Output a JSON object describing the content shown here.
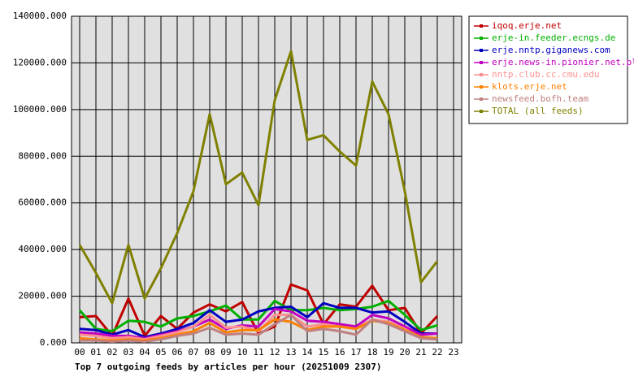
{
  "chart_data": {
    "type": "line",
    "title": "Top 7 outgoing feeds by articles per hour (20251009 2307)",
    "categories": [
      "00",
      "01",
      "02",
      "03",
      "04",
      "05",
      "06",
      "07",
      "08",
      "09",
      "10",
      "11",
      "12",
      "13",
      "14",
      "15",
      "16",
      "17",
      "18",
      "19",
      "20",
      "21",
      "22",
      "23"
    ],
    "series": [
      {
        "name": "iqoq.erje.net",
        "color": "#c00000",
        "values": [
          11000,
          11500,
          3000,
          19000,
          3000,
          11500,
          6000,
          13000,
          16500,
          13500,
          17500,
          4000,
          7000,
          25000,
          22500,
          8000,
          16500,
          15500,
          24500,
          14000,
          15000,
          4000,
          11500,
          null
        ]
      },
      {
        "name": "erje-in.feeder.ecngs.de",
        "color": "#00b000",
        "values": [
          14000,
          6000,
          5000,
          9500,
          9000,
          7000,
          10500,
          11500,
          13500,
          16000,
          10000,
          10000,
          18000,
          14000,
          14000,
          15000,
          14000,
          14500,
          15500,
          18000,
          12000,
          5500,
          7500,
          null
        ]
      },
      {
        "name": "erje.nntp.giganews.com",
        "color": "#0000c0",
        "values": [
          6000,
          5500,
          3500,
          5500,
          2500,
          4000,
          6000,
          8500,
          14000,
          9000,
          10000,
          13500,
          15000,
          15500,
          11000,
          17000,
          15000,
          15000,
          13000,
          13500,
          9000,
          4000,
          4000,
          null
        ]
      },
      {
        "name": "erje.news-in.pionier.net.pl",
        "color": "#c000c0",
        "values": [
          4500,
          4000,
          3000,
          3000,
          2000,
          3500,
          5000,
          7000,
          10000,
          6000,
          7500,
          7000,
          14500,
          13500,
          9500,
          9000,
          8000,
          7000,
          12000,
          10500,
          7000,
          3500,
          4000,
          null
        ]
      },
      {
        "name": "nntp.club.cc.cmu.edu",
        "color": "#ff9090",
        "values": [
          3500,
          3000,
          2000,
          2500,
          1500,
          3000,
          4500,
          7000,
          12000,
          6500,
          7000,
          5000,
          12000,
          12000,
          7000,
          8000,
          7000,
          6000,
          10000,
          9000,
          6000,
          2000,
          2000,
          null
        ]
      },
      {
        "name": "klots.erje.net",
        "color": "#ff8000",
        "values": [
          2000,
          1500,
          1000,
          1500,
          1000,
          2000,
          3500,
          5000,
          8500,
          4500,
          5500,
          5500,
          10000,
          9000,
          5500,
          7000,
          7000,
          6000,
          9500,
          8500,
          5500,
          2500,
          2000,
          null
        ]
      },
      {
        "name": "newsfeed.bofh.team",
        "color": "#c08080",
        "values": [
          1000,
          1000,
          500,
          1000,
          500,
          1500,
          3000,
          4000,
          6500,
          3500,
          4000,
          3500,
          8000,
          12000,
          5000,
          6000,
          5000,
          3500,
          10000,
          8000,
          5000,
          2000,
          1500,
          null
        ]
      },
      {
        "name": "TOTAL (all feeds)",
        "color": "#808000",
        "values": [
          42000,
          30000,
          17000,
          42000,
          19000,
          32000,
          47000,
          65000,
          98000,
          68000,
          73000,
          59000,
          104000,
          125000,
          87000,
          89000,
          82000,
          76000,
          112000,
          98000,
          65000,
          26000,
          35000,
          null
        ]
      }
    ],
    "ylim": [
      0,
      140000
    ],
    "yticks": [
      {
        "value": 0,
        "label": "0.000"
      },
      {
        "value": 20000,
        "label": "20000.000"
      },
      {
        "value": 40000,
        "label": "40000.000"
      },
      {
        "value": 60000,
        "label": "60000.000"
      },
      {
        "value": 80000,
        "label": "80000.000"
      },
      {
        "value": 100000,
        "label": "100000.000"
      },
      {
        "value": 120000,
        "label": "120000.000"
      },
      {
        "value": 140000,
        "label": "140000.000"
      }
    ],
    "grid": true,
    "legend": "top-right",
    "background": "#e0e0e0"
  }
}
